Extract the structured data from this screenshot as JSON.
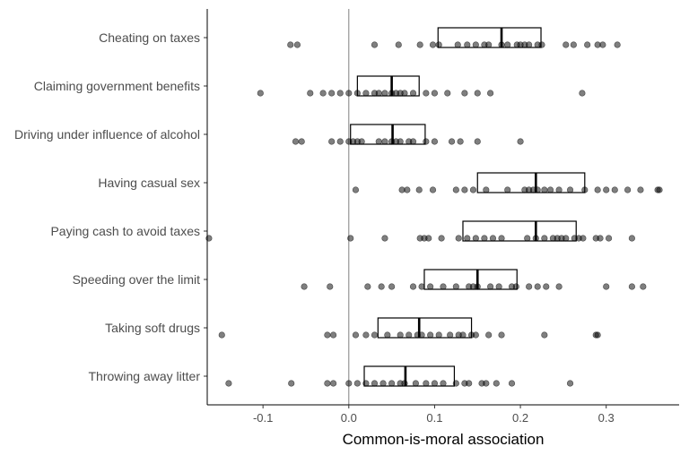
{
  "chart_data": {
    "type": "boxplot_with_points",
    "title": "",
    "xlabel": "Common-is-moral association",
    "ylabel": "",
    "xlim": [
      -0.165,
      0.385
    ],
    "x_ticks": [
      {
        "value": -0.1,
        "label": "-0.1"
      },
      {
        "value": 0.0,
        "label": "0.0"
      },
      {
        "value": 0.1,
        "label": "0.1"
      },
      {
        "value": 0.2,
        "label": "0.2"
      },
      {
        "value": 0.3,
        "label": "0.3"
      }
    ],
    "reference_line": 0,
    "grid": false,
    "colors": {
      "points": "#000000",
      "point_opacity": 0.5,
      "box": "#000000",
      "reference_line": "#808080"
    },
    "categories": [
      {
        "name": "Cheating on taxes",
        "box": {
          "q1": 0.104,
          "median": 0.178,
          "q3": 0.224
        },
        "points": [
          -0.068,
          -0.06,
          0.03,
          0.058,
          0.083,
          0.098,
          0.105,
          0.127,
          0.138,
          0.148,
          0.158,
          0.163,
          0.178,
          0.185,
          0.196,
          0.2,
          0.205,
          0.21,
          0.22,
          0.225,
          0.253,
          0.262,
          0.278,
          0.29,
          0.296,
          0.313
        ]
      },
      {
        "name": "Claiming government benefits",
        "box": {
          "q1": 0.01,
          "median": 0.05,
          "q3": 0.082
        },
        "points": [
          -0.103,
          -0.045,
          -0.03,
          -0.02,
          -0.01,
          0.0,
          0.01,
          0.02,
          0.03,
          0.035,
          0.042,
          0.05,
          0.055,
          0.06,
          0.065,
          0.075,
          0.09,
          0.1,
          0.115,
          0.135,
          0.15,
          0.165,
          0.272
        ]
      },
      {
        "name": "Driving under influence of alcohol",
        "box": {
          "q1": 0.002,
          "median": 0.051,
          "q3": 0.089
        },
        "points": [
          -0.062,
          -0.055,
          -0.02,
          -0.01,
          0.0,
          0.005,
          0.01,
          0.015,
          0.035,
          0.042,
          0.05,
          0.055,
          0.06,
          0.07,
          0.075,
          0.09,
          0.1,
          0.12,
          0.13,
          0.15,
          0.2
        ]
      },
      {
        "name": "Having casual sex",
        "box": {
          "q1": 0.15,
          "median": 0.218,
          "q3": 0.275
        },
        "points": [
          0.008,
          0.062,
          0.068,
          0.082,
          0.098,
          0.125,
          0.135,
          0.145,
          0.16,
          0.185,
          0.205,
          0.21,
          0.215,
          0.22,
          0.228,
          0.235,
          0.245,
          0.258,
          0.275,
          0.29,
          0.3,
          0.31,
          0.325,
          0.34,
          0.36,
          0.362
        ]
      },
      {
        "name": "Paying cash to avoid taxes",
        "box": {
          "q1": 0.133,
          "median": 0.218,
          "q3": 0.265
        },
        "points": [
          -0.163,
          0.002,
          0.042,
          0.083,
          0.088,
          0.093,
          0.108,
          0.128,
          0.138,
          0.148,
          0.158,
          0.168,
          0.178,
          0.208,
          0.218,
          0.228,
          0.238,
          0.243,
          0.248,
          0.253,
          0.263,
          0.268,
          0.273,
          0.288,
          0.293,
          0.303,
          0.33
        ]
      },
      {
        "name": "Speeding over the limit",
        "box": {
          "q1": 0.088,
          "median": 0.15,
          "q3": 0.196
        },
        "points": [
          -0.052,
          -0.022,
          0.022,
          0.038,
          0.05,
          0.075,
          0.085,
          0.095,
          0.11,
          0.125,
          0.14,
          0.145,
          0.15,
          0.165,
          0.175,
          0.19,
          0.195,
          0.21,
          0.22,
          0.23,
          0.245,
          0.3,
          0.33,
          0.343
        ]
      },
      {
        "name": "Taking soft drugs",
        "box": {
          "q1": 0.034,
          "median": 0.082,
          "q3": 0.143
        },
        "points": [
          -0.148,
          -0.025,
          -0.018,
          0.008,
          0.02,
          0.03,
          0.045,
          0.06,
          0.07,
          0.08,
          0.085,
          0.095,
          0.105,
          0.118,
          0.128,
          0.133,
          0.143,
          0.148,
          0.163,
          0.178,
          0.228,
          0.288,
          0.29
        ]
      },
      {
        "name": "Throwing away litter",
        "box": {
          "q1": 0.018,
          "median": 0.066,
          "q3": 0.123
        },
        "points": [
          -0.14,
          -0.067,
          -0.025,
          -0.018,
          0.0,
          0.01,
          0.02,
          0.03,
          0.04,
          0.05,
          0.06,
          0.065,
          0.078,
          0.09,
          0.1,
          0.11,
          0.125,
          0.135,
          0.14,
          0.155,
          0.16,
          0.172,
          0.19,
          0.258
        ]
      }
    ]
  }
}
